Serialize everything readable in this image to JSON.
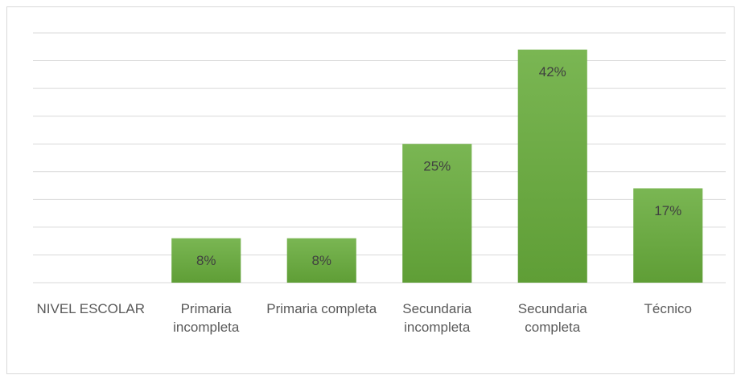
{
  "chart_data": {
    "type": "bar",
    "categories": [
      "NIVEL ESCOLAR",
      "Primaria incompleta",
      "Primaria completa",
      "Secundaria incompleta",
      "Secundaria completa",
      "Técnico"
    ],
    "values": [
      null,
      8,
      8,
      25,
      42,
      17
    ],
    "value_labels": [
      null,
      "8%",
      "8%",
      "25%",
      "42%",
      "17%"
    ],
    "color": "#6aaa44",
    "ylim": [
      0,
      45
    ],
    "yticks": [
      0,
      5,
      10,
      15,
      20,
      25,
      30,
      35,
      40,
      45
    ],
    "grid": true
  }
}
